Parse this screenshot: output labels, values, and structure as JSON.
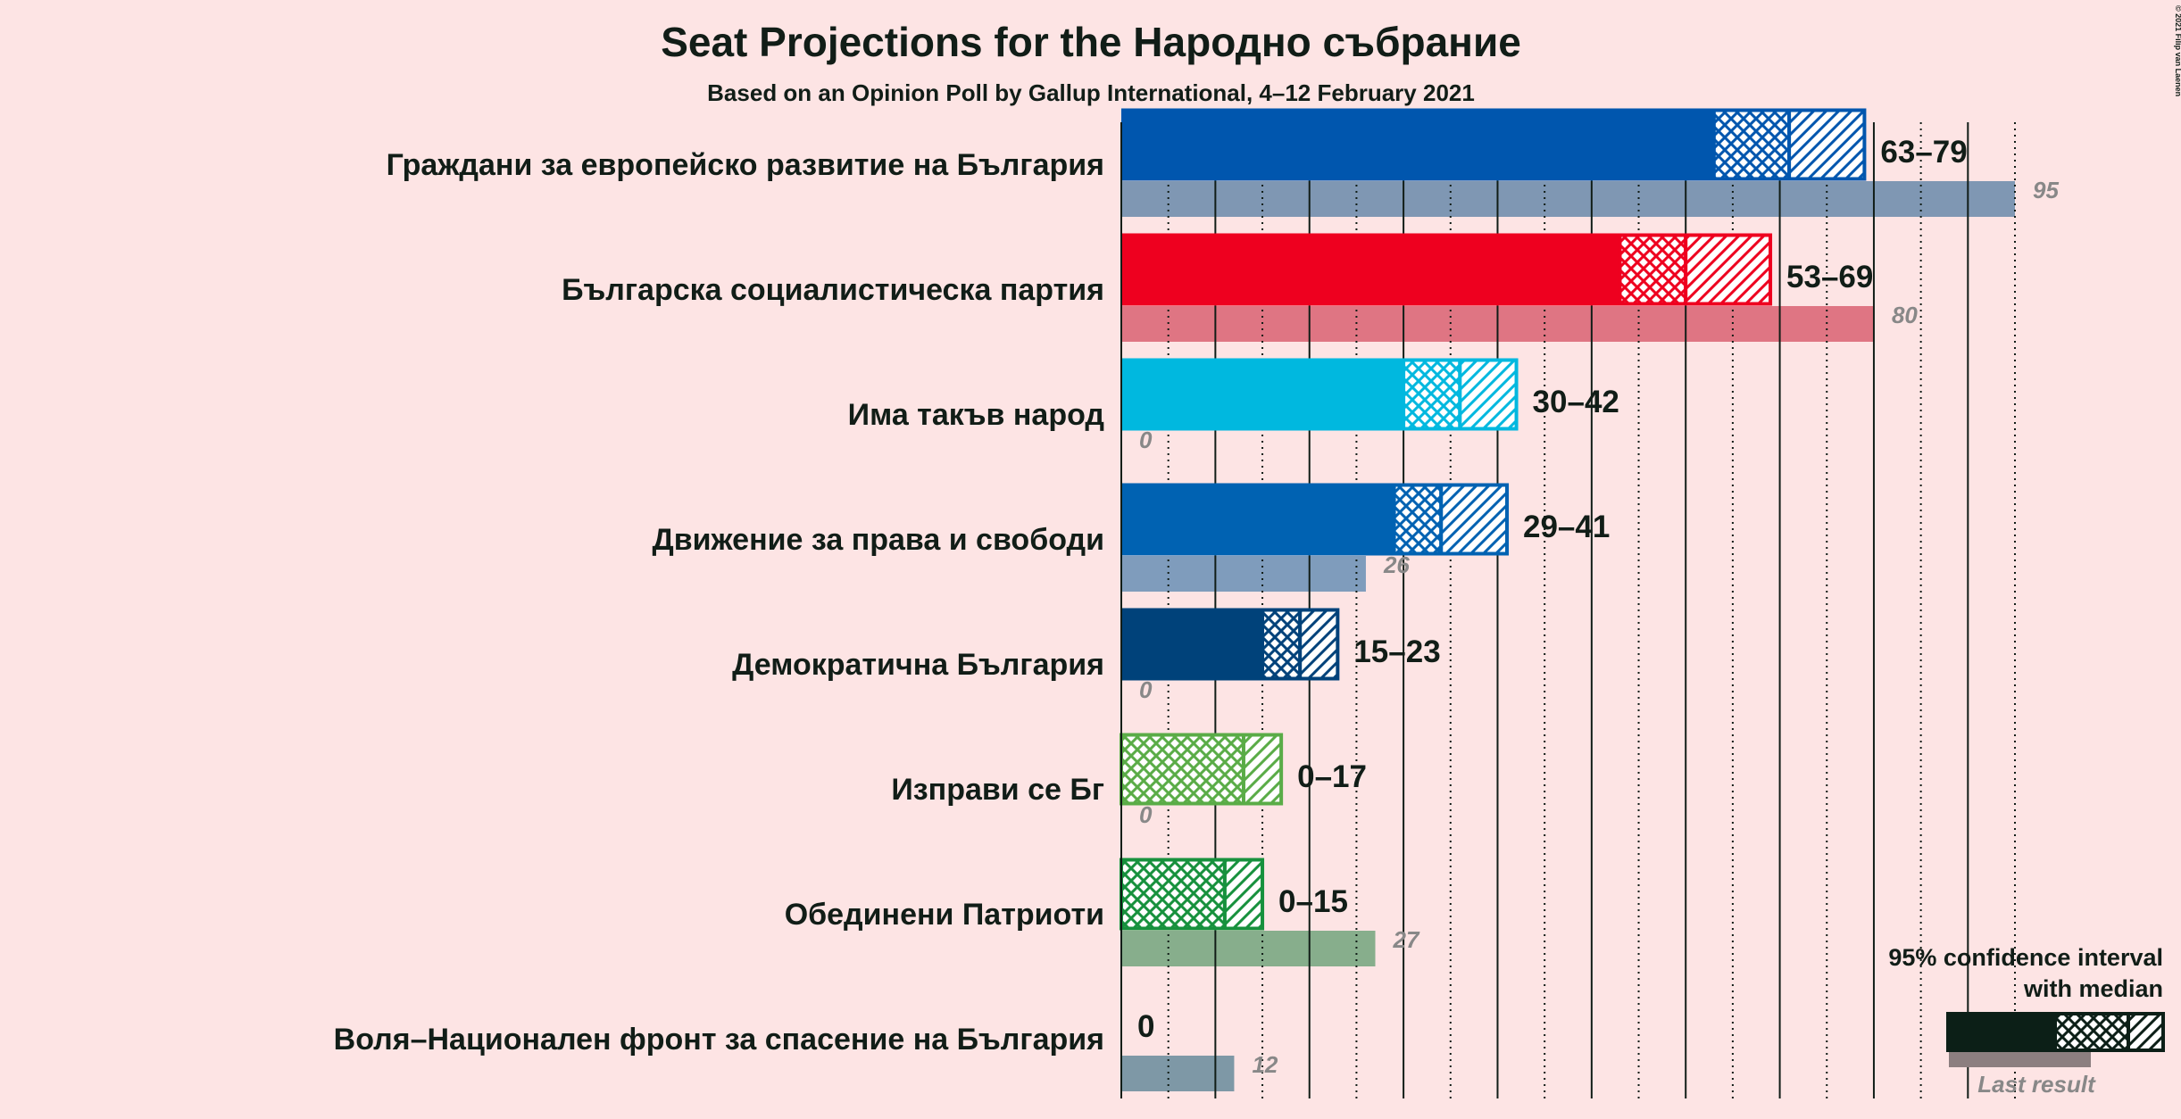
{
  "chart_data": {
    "type": "bar",
    "title": "Seat Projections for the Народно събрание",
    "subtitle": "Based on an Opinion Poll by Gallup International, 4–12 February 2021",
    "categories": [
      "Граждани за европейско развитие на България",
      "Българска социалистическа партия",
      "Има такъв народ",
      "Движение за права и свободи",
      "Демократична България",
      "Изправи се Бг",
      "Обединени Патриоти",
      "Воля–Национален фронт за спасение на България"
    ],
    "colors": [
      "#0056ae",
      "#ee001f",
      "#00b8df",
      "#0062b2",
      "#00427a",
      "#5aac47",
      "#17913d",
      "#7e98a6"
    ],
    "last_colors": [
      "#7f97b3",
      "#df7583",
      "#7fc7d8",
      "#7f9cbc",
      "#7f94ac",
      "#9fc995",
      "#87ae8c",
      "#7e98a6"
    ],
    "low": [
      63,
      53,
      30,
      29,
      15,
      0,
      0,
      0
    ],
    "median": [
      71,
      60,
      36,
      34,
      19,
      13,
      11,
      0
    ],
    "high": [
      79,
      69,
      42,
      41,
      23,
      17,
      15,
      0
    ],
    "range_labels": [
      "63–79",
      "53–69",
      "30–42",
      "29–41",
      "15–23",
      "0–17",
      "0–15",
      "0"
    ],
    "last_result": [
      95,
      80,
      0,
      26,
      0,
      0,
      27,
      12
    ],
    "xlim": [
      0,
      95
    ],
    "xticks": [
      0,
      5,
      10,
      15,
      20,
      25,
      30,
      35,
      40,
      45,
      50,
      55,
      60,
      65,
      70,
      75,
      80,
      85,
      90,
      95
    ],
    "grid": true,
    "legend": {
      "interval": "95% confidence interval",
      "median": "with median",
      "last_result": "Last result",
      "color": "#0c1f17",
      "last_color": "#8c7f80"
    },
    "copyright": "© 2021 Filip van Laenen"
  }
}
